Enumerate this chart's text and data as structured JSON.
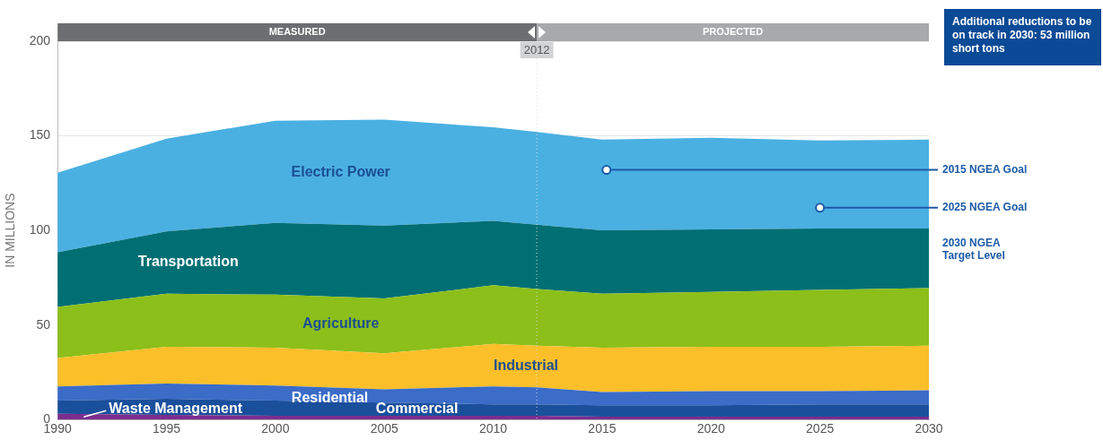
{
  "chart_data": {
    "type": "area",
    "stacked": true,
    "ylabel": "IN MILLIONS",
    "x": [
      1990,
      1995,
      2000,
      2005,
      2010,
      2012,
      2015,
      2020,
      2025,
      2030
    ],
    "xlim": [
      1990,
      2030
    ],
    "xticks": [
      1990,
      1995,
      2000,
      2005,
      2010,
      2015,
      2020,
      2025,
      2030
    ],
    "ylim": [
      0,
      200
    ],
    "yticks": [
      0,
      50,
      100,
      150,
      200
    ],
    "grid": "y",
    "legend": false,
    "series": [
      {
        "name": "Waste Management",
        "color": "#7b2d8e",
        "values": [
          3,
          2.5,
          2,
          2,
          2,
          2,
          1.5,
          1.5,
          1.5,
          1.5
        ]
      },
      {
        "name": "Commercial",
        "color": "#1a4f9c",
        "values": [
          7,
          8.5,
          8,
          7,
          6,
          6,
          6,
          6,
          6.5,
          6.5
        ]
      },
      {
        "name": "Residential",
        "color": "#3a6cc8",
        "values": [
          7.5,
          8,
          8,
          7,
          9.5,
          9,
          7,
          7.5,
          7,
          7.5
        ]
      },
      {
        "name": "Industrial",
        "color": "#fbbf2a",
        "values": [
          15,
          19.5,
          20,
          19,
          22.5,
          22,
          23.5,
          23.5,
          23.5,
          23.5
        ]
      },
      {
        "name": "Agriculture",
        "color": "#8cbf1a",
        "values": [
          27,
          28,
          28,
          29,
          31,
          30,
          28.5,
          29,
          30,
          30.5
        ]
      },
      {
        "name": "Transportation",
        "color": "#006f74",
        "values": [
          29,
          33,
          38,
          38.5,
          34,
          34,
          33.5,
          33,
          32.5,
          31.5
        ]
      },
      {
        "name": "Electric Power",
        "color": "#4ab0e2",
        "values": [
          42,
          49,
          54,
          56,
          49.5,
          49,
          48,
          48.5,
          46.5,
          47
        ]
      }
    ],
    "ref_lines": [
      {
        "axis": "x",
        "value": 2012,
        "label": "2012",
        "line_style": "dotted"
      }
    ],
    "annotations": [
      "MEASURED",
      "PROJECTED",
      "Additional reductions to be on track in 2030: 53 million short tons",
      {
        "text": "2015 NGEA Goal",
        "x": 2015.2,
        "y": 132
      },
      {
        "text": "2025 NGEA Goal",
        "x": 2025,
        "y": 112
      },
      "2030 NGEA Target Level"
    ]
  }
}
